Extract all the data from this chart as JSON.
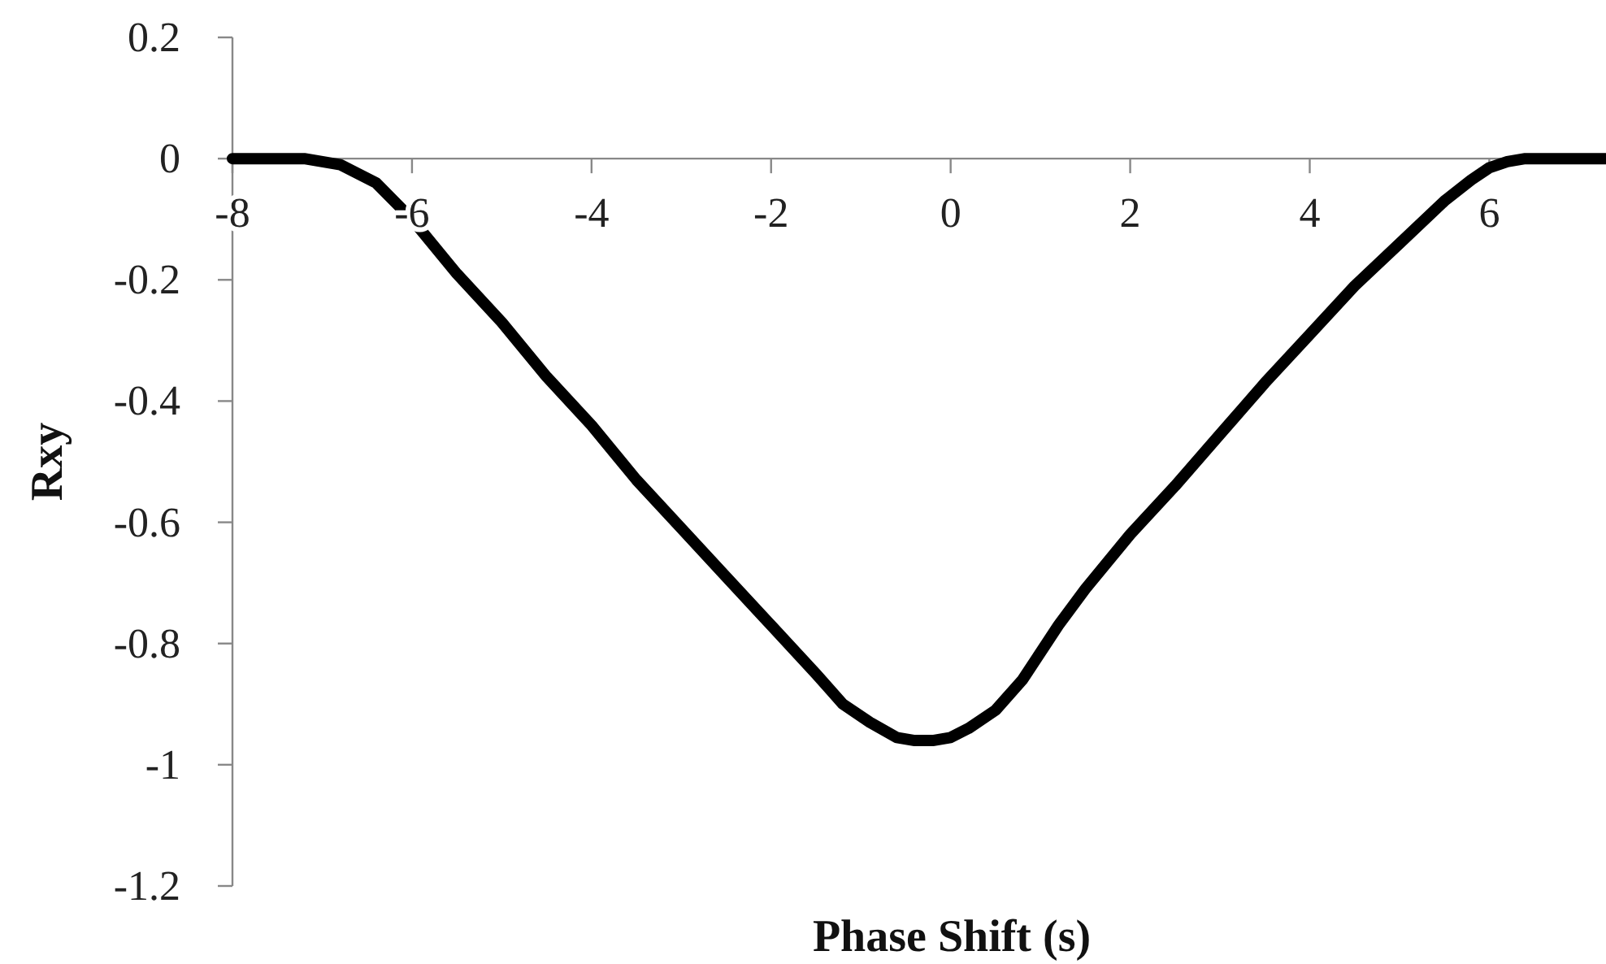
{
  "chart_data": {
    "type": "line",
    "xlabel": "Phase Shift (s)",
    "ylabel": "Rxy",
    "xlim": [
      -8,
      7.3
    ],
    "xticks": [
      -8,
      -6,
      -4,
      -2,
      0,
      2,
      4,
      6
    ],
    "ylim": [
      -1.2,
      0.2
    ],
    "yticks": [
      0.2,
      0,
      -0.2,
      -0.4,
      -0.6,
      -0.8,
      -1,
      -1.2
    ],
    "grid": false,
    "marker": "none",
    "line_style": "solid",
    "series": [
      {
        "color": "#000000",
        "x": [
          -8,
          -7.5,
          -7.2,
          -6.8,
          -6.4,
          -6,
          -5.5,
          -5,
          -4.5,
          -4,
          -3.5,
          -3,
          -2.5,
          -2,
          -1.5,
          -1.2,
          -0.9,
          -0.6,
          -0.4,
          -0.2,
          0,
          0.2,
          0.5,
          0.8,
          1.2,
          1.5,
          2,
          2.5,
          3,
          3.5,
          4,
          4.5,
          5,
          5.5,
          5.8,
          6,
          6.2,
          6.4,
          6.8,
          7.3
        ],
        "values": [
          0,
          0,
          0,
          -0.01,
          -0.04,
          -0.1,
          -0.19,
          -0.27,
          -0.36,
          -0.44,
          -0.53,
          -0.61,
          -0.69,
          -0.77,
          -0.85,
          -0.9,
          -0.93,
          -0.955,
          -0.96,
          -0.96,
          -0.955,
          -0.94,
          -0.91,
          -0.86,
          -0.77,
          -0.71,
          -0.62,
          -0.54,
          -0.455,
          -0.37,
          -0.29,
          -0.21,
          -0.14,
          -0.07,
          -0.035,
          -0.015,
          -0.005,
          0,
          0,
          0
        ]
      }
    ]
  }
}
